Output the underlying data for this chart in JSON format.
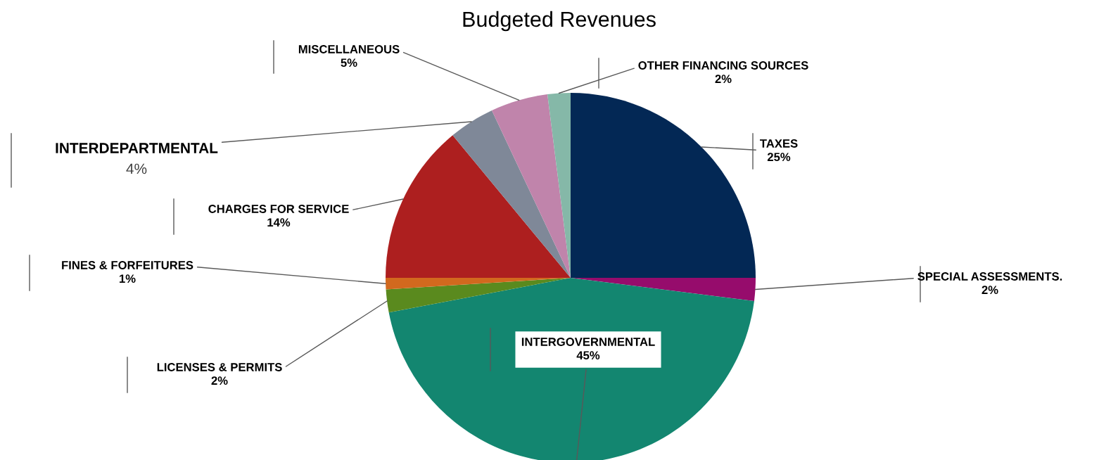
{
  "chart_data": {
    "type": "pie",
    "title": "Budgeted Revenues",
    "categories": [
      "TAXES",
      "SPECIAL ASSESSMENTS.",
      "INTERGOVERNMENTAL",
      "LICENSES & PERMITS",
      "FINES & FORFEITURES",
      "CHARGES FOR SERVICE",
      "INTERDEPARTMENTAL",
      "MISCELLANEOUS",
      "OTHER FINANCING SOURCES"
    ],
    "values": [
      25,
      2,
      45,
      2,
      1,
      14,
      4,
      5,
      2
    ],
    "colors": [
      "#032855",
      "#960c6c",
      "#138670",
      "#5a8a1e",
      "#d2691e",
      "#ad1f1f",
      "#7f8898",
      "#c084ab",
      "#85b8a8"
    ],
    "value_labels": [
      "25%",
      "2%",
      "45%",
      "2%",
      "1%",
      "14%",
      "4%",
      "5%",
      "2%"
    ]
  }
}
